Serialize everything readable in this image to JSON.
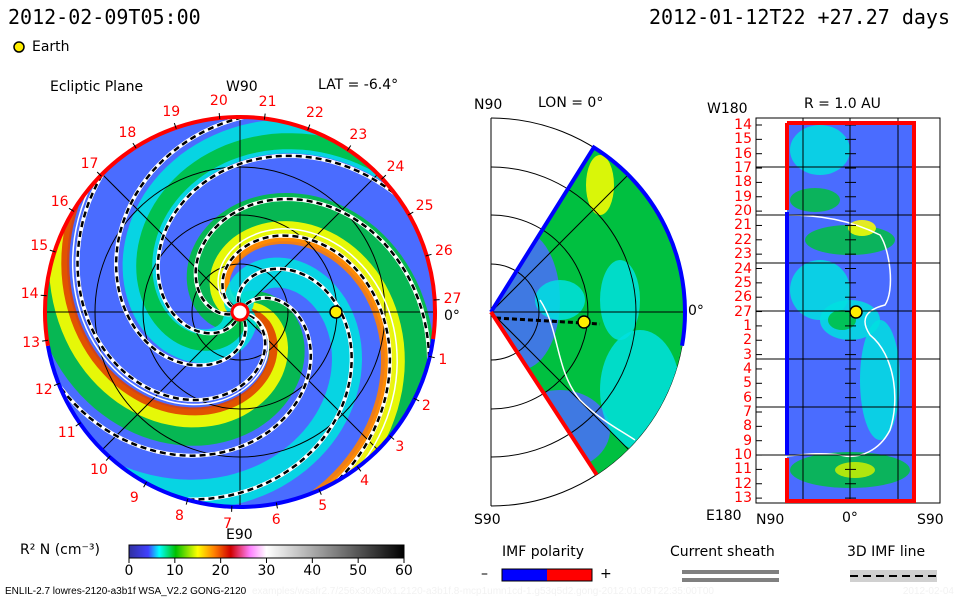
{
  "header": {
    "current_time": "2012-02-09T05:00",
    "reference_time": "2012-01-12T22 +27.27 days"
  },
  "legend_earth": {
    "label": "Earth",
    "color": "#ffee00"
  },
  "ecliptic": {
    "title": "Ecliptic Plane",
    "top_label": "W90",
    "bottom_label": "E90",
    "lat_label": "LAT = -6.4°",
    "zero_label": "0°",
    "day_labels": [
      "1",
      "2",
      "3",
      "4",
      "5",
      "6",
      "7",
      "8",
      "9",
      "10",
      "11",
      "12",
      "13",
      "14",
      "15",
      "16",
      "17",
      "18",
      "19",
      "20",
      "21",
      "22",
      "23",
      "24",
      "25",
      "26",
      "27"
    ]
  },
  "meridional": {
    "top_label": "N90",
    "bottom_label": "S90",
    "lon_label": "LON = 0°",
    "zero_label": "0°"
  },
  "radial": {
    "title": "R = 1.0 AU",
    "top_label": "W180",
    "bottom_label": "E180",
    "x_labels": [
      "N90",
      "0°",
      "S90"
    ],
    "y_labels": [
      "14",
      "15",
      "16",
      "17",
      "18",
      "19",
      "20",
      "21",
      "22",
      "23",
      "24",
      "25",
      "26",
      "27",
      "1",
      "2",
      "3",
      "4",
      "5",
      "6",
      "7",
      "8",
      "9",
      "10",
      "11",
      "12",
      "13"
    ]
  },
  "colorbar": {
    "label": "R² N (cm⁻³)",
    "ticks": [
      "0",
      "10",
      "20",
      "30",
      "40",
      "50",
      "60"
    ]
  },
  "imf_legend": {
    "title": "IMF polarity",
    "minus": "–",
    "plus": "+",
    "negative_color": "#0000ff",
    "positive_color": "#ff0000"
  },
  "sheath_legend": {
    "title": "Current sheath"
  },
  "imf_line_legend": {
    "title": "3D IMF line"
  },
  "footer": {
    "model_info": "ENLIL-2.7 lowres-2120-a3b1f WSA_V2.2 GONG-2120",
    "run_path": "examples/wsafr2.7/256x30x90x1.2120-a3b1f.8-mcp1umn1cd-1.g53q5d2.gong-2012:01:09T22:35:00T00",
    "run_date": "2012-02-04"
  },
  "chart_data": {
    "type": "heatmap",
    "title": "",
    "quantity": "R² N (cm⁻³)",
    "color_range": [
      0,
      60
    ],
    "colormap": [
      "#3030a0",
      "#4040ff",
      "#00ffff",
      "#00c000",
      "#ffff00",
      "#ff8000",
      "#d00000",
      "#ff80ff",
      "#ffffff",
      "#808080",
      "#000000"
    ],
    "panels": [
      "Ecliptic Plane",
      "LON = 0°",
      "R = 1.0 AU"
    ]
  }
}
